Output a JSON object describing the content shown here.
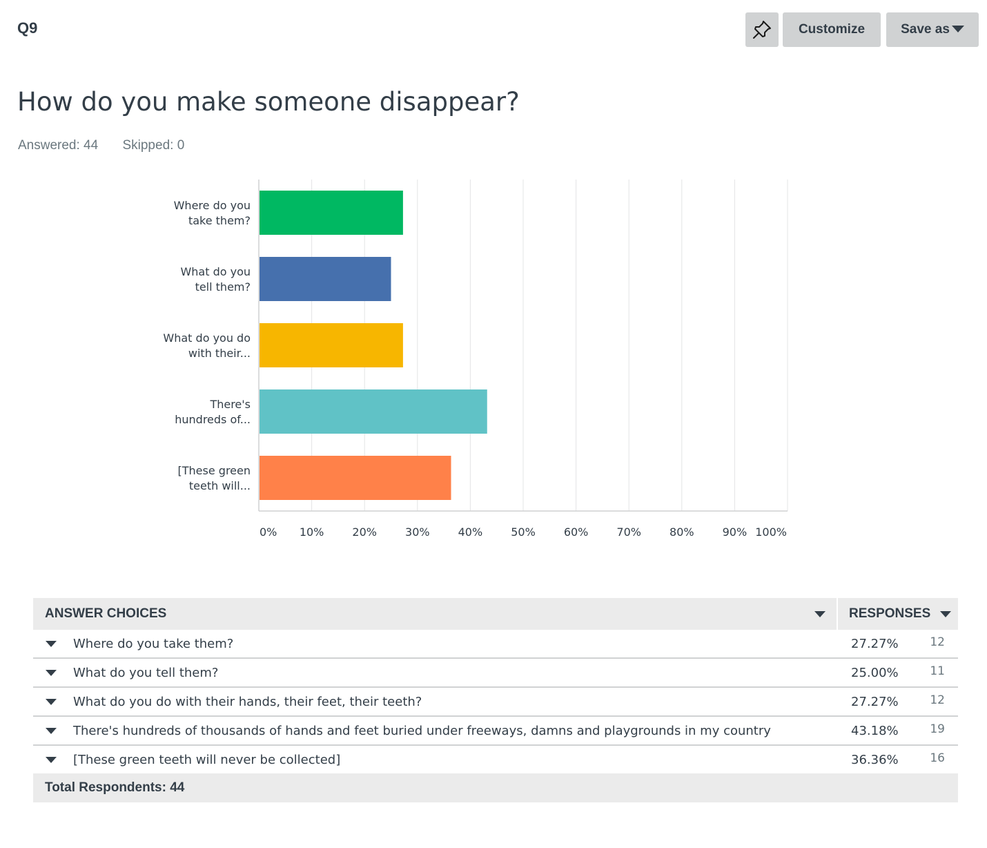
{
  "header": {
    "question_number": "Q9",
    "pin_icon": "pin-icon",
    "customize_label": "Customize",
    "save_as_label": "Save as"
  },
  "question": {
    "title": "How do you make someone disappear?",
    "answered": "Answered: 44",
    "skipped": "Skipped: 0"
  },
  "chart_data": {
    "type": "bar",
    "orientation": "horizontal",
    "categories": [
      [
        "Where do you",
        "take them?"
      ],
      [
        "What do you",
        "tell them?"
      ],
      [
        "What do you do",
        "with their..."
      ],
      [
        "There's",
        "hundreds of..."
      ],
      [
        "[These green",
        "teeth will..."
      ]
    ],
    "values": [
      27.27,
      25.0,
      27.27,
      43.18,
      36.36
    ],
    "colors": [
      "#00b862",
      "#4670ad",
      "#f7b600",
      "#60c2c6",
      "#ff8149"
    ],
    "xlim": [
      0,
      100
    ],
    "ticks": [
      "0%",
      "10%",
      "20%",
      "30%",
      "40%",
      "50%",
      "60%",
      "70%",
      "80%",
      "90%",
      "100%"
    ],
    "grid": true
  },
  "table": {
    "col_choices": "ANSWER CHOICES",
    "col_responses": "RESPONSES",
    "rows": [
      {
        "choice": "Where do you take them?",
        "pct": "27.27%",
        "count": "12"
      },
      {
        "choice": "What do you tell them?",
        "pct": "25.00%",
        "count": "11"
      },
      {
        "choice": "What do you do with their hands, their feet, their teeth?",
        "pct": "27.27%",
        "count": "12"
      },
      {
        "choice": "There's hundreds of thousands of hands and feet buried under freeways, damns and playgrounds in my country",
        "pct": "43.18%",
        "count": "19"
      },
      {
        "choice": "[These green teeth will never be collected]",
        "pct": "36.36%",
        "count": "16"
      }
    ],
    "total": "Total Respondents: 44"
  }
}
